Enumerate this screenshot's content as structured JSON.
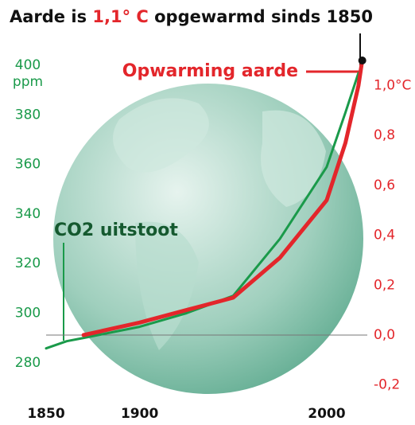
{
  "chart_data": {
    "type": "line",
    "title": [
      "Aarde is ",
      "1,1° C",
      " opgewarmd sinds 1850"
    ],
    "y_unit": "ppm",
    "annotations": [
      "Opwarming aarde",
      "CO2 uitstoot"
    ],
    "x": [
      1850,
      1861,
      1870,
      1900,
      1925,
      1950,
      1975,
      2000,
      2010,
      2017,
      2019
    ],
    "series": [
      {
        "name": "CO2 uitstoot",
        "color": "#1a9a4a",
        "axis": "y",
        "values": [
          285.8,
          288.7,
          290,
          294.5,
          300,
          307,
          330,
          359,
          381,
          397,
          null
        ]
      },
      {
        "name": "Opwarming aarde",
        "color": "#e3262b",
        "axis": "y2",
        "values": [
          null,
          null,
          0.0,
          0.05,
          0.1,
          0.15,
          0.31,
          0.54,
          0.77,
          1.0,
          1.1
        ]
      }
    ],
    "xlim": [
      1850,
      2020
    ],
    "xticks": [
      1850,
      1900,
      2000
    ],
    "ylim": [
      269,
      402
    ],
    "yticks": [
      280,
      300,
      320,
      340,
      360,
      380,
      400
    ],
    "y2lim": [
      -0.22,
      1.1
    ],
    "y2ticks": [
      {
        "value": -0.2,
        "label": "-0,2"
      },
      {
        "value": 0.0,
        "label": "0,0"
      },
      {
        "value": 0.2,
        "label": "0,2"
      },
      {
        "value": 0.4,
        "label": "0,4"
      },
      {
        "value": 0.6,
        "label": "0,6"
      },
      {
        "value": 0.8,
        "label": "0,8"
      },
      {
        "value": 1.0,
        "label": "1,0°C"
      }
    ]
  }
}
